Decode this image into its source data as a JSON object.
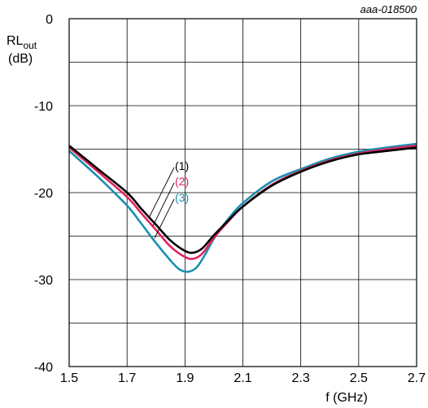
{
  "figure_code": "aaa-018500",
  "chart_data": {
    "type": "line",
    "ylabel_main": "RL",
    "ylabel_sub": "out",
    "yunit": "(dB)",
    "xlabel": "f (GHz)",
    "xlim": [
      1.5,
      2.7
    ],
    "ylim": [
      -40,
      0
    ],
    "xticks": [
      "1.5",
      "1.7",
      "1.9",
      "2.1",
      "2.3",
      "2.5",
      "2.7"
    ],
    "yticks": [
      "0",
      "-10",
      "-20",
      "-30",
      "-40"
    ],
    "grid": true,
    "series": [
      {
        "name": "(1)",
        "color": "#000000",
        "x": [
          1.5,
          1.6,
          1.7,
          1.75,
          1.8,
          1.85,
          1.9,
          1.93,
          1.96,
          2.0,
          2.05,
          2.1,
          2.2,
          2.3,
          2.4,
          2.5,
          2.6,
          2.7
        ],
        "y": [
          -14.6,
          -17.3,
          -20.0,
          -21.9,
          -23.7,
          -25.5,
          -26.7,
          -26.9,
          -26.4,
          -24.9,
          -23.2,
          -21.6,
          -19.2,
          -17.6,
          -16.4,
          -15.6,
          -15.2,
          -14.8
        ]
      },
      {
        "name": "(2)",
        "color": "#e0245e",
        "x": [
          1.5,
          1.6,
          1.7,
          1.75,
          1.8,
          1.85,
          1.9,
          1.93,
          1.96,
          2.0,
          2.05,
          2.1,
          2.2,
          2.3,
          2.4,
          2.5,
          2.6,
          2.7
        ],
        "y": [
          -14.8,
          -17.6,
          -20.5,
          -22.4,
          -24.3,
          -26.2,
          -27.4,
          -27.6,
          -27.0,
          -25.2,
          -23.3,
          -21.6,
          -19.1,
          -17.5,
          -16.3,
          -15.5,
          -15.0,
          -14.6
        ]
      },
      {
        "name": "(3)",
        "color": "#1a8fb0",
        "x": [
          1.5,
          1.6,
          1.7,
          1.75,
          1.8,
          1.85,
          1.88,
          1.91,
          1.94,
          1.97,
          2.0,
          2.05,
          2.1,
          2.2,
          2.3,
          2.4,
          2.5,
          2.6,
          2.7
        ],
        "y": [
          -15.2,
          -18.2,
          -21.5,
          -23.6,
          -25.8,
          -27.8,
          -28.8,
          -29.1,
          -28.6,
          -27.1,
          -25.3,
          -23.0,
          -21.2,
          -18.7,
          -17.3,
          -16.1,
          -15.3,
          -14.8,
          -14.4
        ]
      }
    ],
    "callouts": [
      {
        "label": "(1)",
        "color": "#000000"
      },
      {
        "label": "(2)",
        "color": "#e0245e"
      },
      {
        "label": "(3)",
        "color": "#1a8fb0"
      }
    ]
  }
}
